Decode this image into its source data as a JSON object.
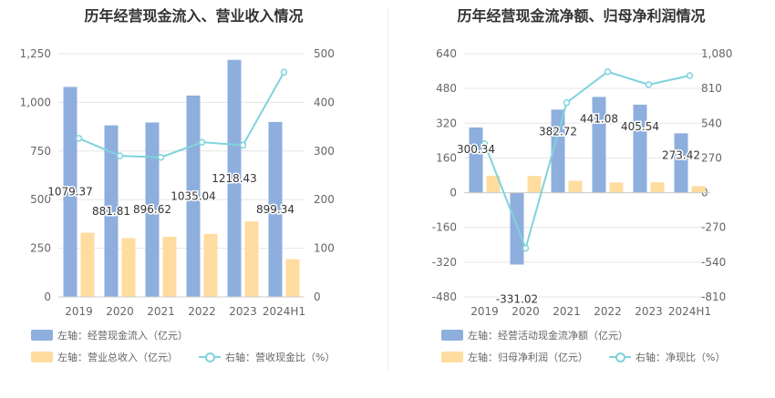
{
  "chart_data": [
    {
      "type": "bar",
      "title": "历年经营现金流入、营业收入情况",
      "categories": [
        "2019",
        "2020",
        "2021",
        "2022",
        "2023",
        "2024H1"
      ],
      "left_axis": {
        "ticks": [
          "0",
          "250",
          "500",
          "750",
          "1,000",
          "1,250"
        ],
        "min": 0,
        "max": 1250
      },
      "right_axis": {
        "ticks": [
          "0",
          "100",
          "200",
          "300",
          "400",
          "500"
        ],
        "min": 0,
        "max": 500
      },
      "series": [
        {
          "name": "左轴：经营现金流入（亿元）",
          "type": "bar",
          "axis": "left",
          "color": "#8eafdd",
          "values": [
            1079.37,
            881.81,
            896.62,
            1035.04,
            1218.43,
            899.34
          ],
          "labels": [
            "1079.37",
            "881.81",
            "896.62",
            "1035.04",
            "1218.43",
            "899.34"
          ]
        },
        {
          "name": "左轴：营业总收入（亿元）",
          "type": "bar",
          "axis": "left",
          "color": "#ffdc9f",
          "values": [
            330,
            302,
            309,
            324,
            388,
            194
          ]
        },
        {
          "name": "右轴：营收现金比（%）",
          "type": "line",
          "axis": "right",
          "color": "#7fd3dd",
          "values": [
            326,
            290,
            287,
            318,
            312,
            462
          ]
        }
      ],
      "legend": [
        {
          "label": "左轴：经营现金流入（亿元）",
          "kind": "bar",
          "color": "#8eafdd"
        },
        {
          "label": "左轴：营业总收入（亿元）",
          "kind": "bar",
          "color": "#ffdc9f"
        },
        {
          "label": "右轴：营收现金比（%）",
          "kind": "line",
          "color": "#7fd3dd"
        }
      ]
    },
    {
      "type": "bar",
      "title": "历年经营现金流净额、归母净利润情况",
      "categories": [
        "2019",
        "2020",
        "2021",
        "2022",
        "2023",
        "2024H1"
      ],
      "left_axis": {
        "ticks": [
          "-480",
          "-320",
          "-160",
          "0",
          "160",
          "320",
          "480",
          "640"
        ],
        "min": -480,
        "max": 640
      },
      "right_axis": {
        "ticks": [
          "-810",
          "-540",
          "-270",
          "0",
          "270",
          "540",
          "810",
          "1,080"
        ],
        "min": -810,
        "max": 1080
      },
      "series": [
        {
          "name": "左轴：经营活动现金流净额（亿元）",
          "type": "bar",
          "axis": "left",
          "color": "#8eafdd",
          "values": [
            300.34,
            -331.02,
            382.72,
            441.08,
            405.54,
            273.42
          ],
          "labels": [
            "300.34",
            "-331.02",
            "382.72",
            "441.08",
            "405.54",
            "273.42"
          ]
        },
        {
          "name": "左轴：归母净利润（亿元）",
          "type": "bar",
          "axis": "left",
          "color": "#ffdc9f",
          "values": [
            78,
            77,
            55,
            47,
            48,
            30
          ]
        },
        {
          "name": "右轴：净现比（%）",
          "type": "line",
          "axis": "right",
          "color": "#7fd3dd",
          "values": [
            380,
            -432,
            700,
            940,
            840,
            910
          ]
        }
      ],
      "legend": [
        {
          "label": "左轴：经营活动现金流净额（亿元）",
          "kind": "bar",
          "color": "#8eafdd"
        },
        {
          "label": "左轴：归母净利润（亿元）",
          "kind": "bar",
          "color": "#ffdc9f"
        },
        {
          "label": "右轴：净现比（%）",
          "kind": "line",
          "color": "#7fd3dd"
        }
      ]
    }
  ]
}
